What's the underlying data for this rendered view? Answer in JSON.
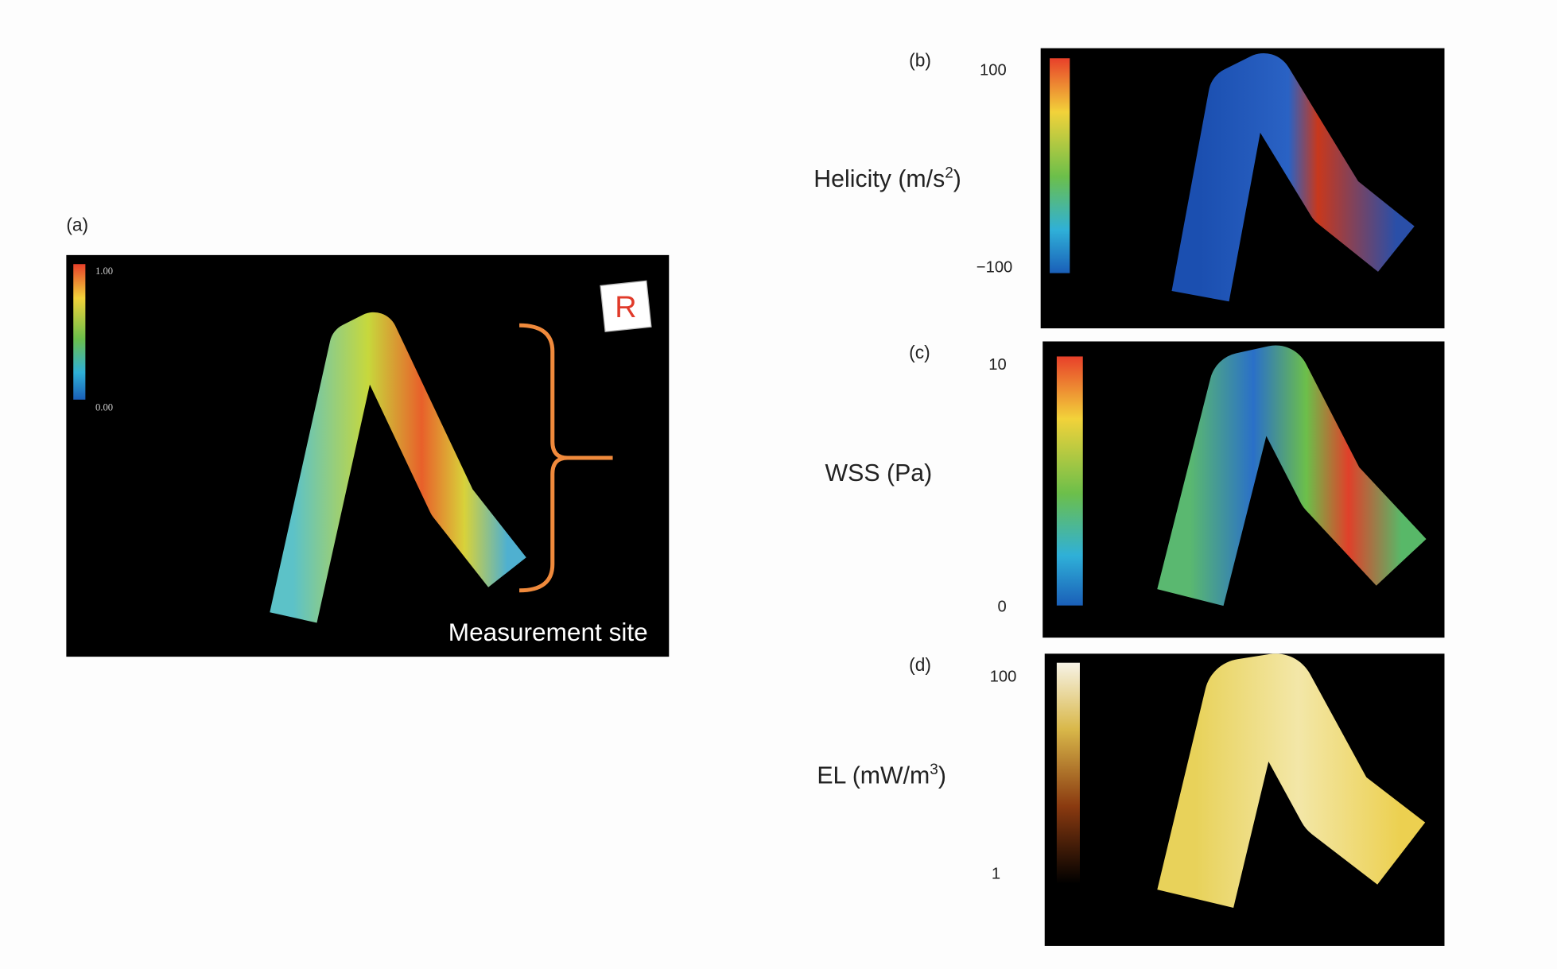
{
  "panels": [
    {
      "label": "(a)",
      "colorbar_max": "1.00",
      "colorbar_min": "0.00",
      "annotation": "Measurement site",
      "orientation_marker": "R"
    },
    {
      "label": "(b)",
      "colorbar_max": "100",
      "colorbar_min": "−100",
      "axis_label": {
        "text": "Helicity (m/s",
        "sup": "2",
        "suffix": ")"
      }
    },
    {
      "label": "(c)",
      "colorbar_max": "10",
      "colorbar_min": "0",
      "axis_label": {
        "text": "WSS (Pa)"
      }
    },
    {
      "label": "(d)",
      "colorbar_max": "100",
      "colorbar_min": "1",
      "axis_label": {
        "text": "EL (mW/m",
        "sup": "3",
        "suffix": ")"
      }
    }
  ]
}
